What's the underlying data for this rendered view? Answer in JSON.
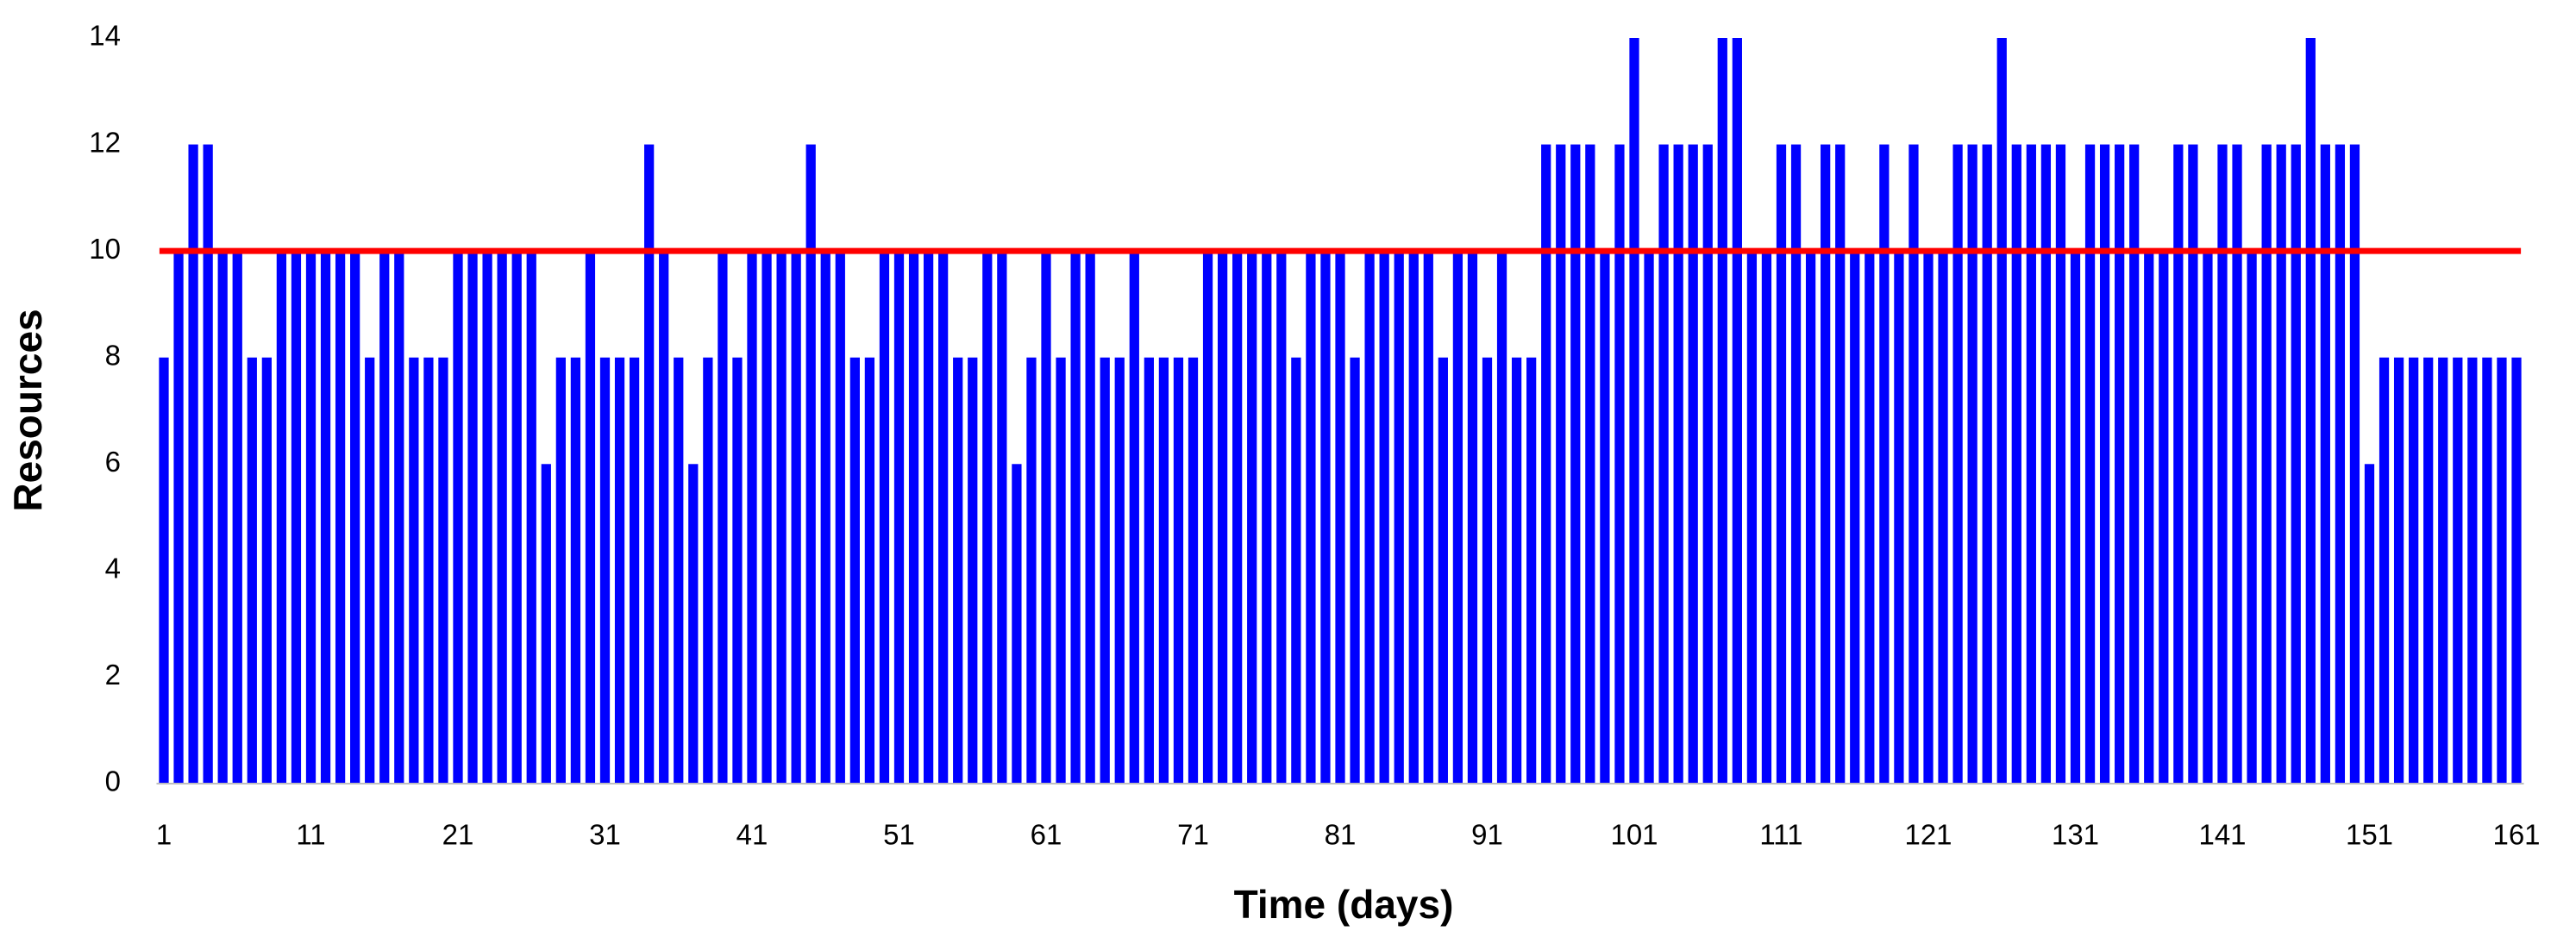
{
  "chart_data": {
    "type": "bar",
    "x_label": "Time (days)",
    "y_label": "Resources",
    "categories": [
      "1",
      null,
      null,
      null,
      null,
      null,
      null,
      null,
      null,
      null,
      "11",
      null,
      null,
      null,
      null,
      null,
      null,
      null,
      null,
      null,
      "21",
      null,
      null,
      null,
      null,
      null,
      null,
      null,
      null,
      null,
      "31",
      null,
      null,
      null,
      null,
      null,
      null,
      null,
      null,
      null,
      "41",
      null,
      null,
      null,
      null,
      null,
      null,
      null,
      null,
      null,
      "51",
      null,
      null,
      null,
      null,
      null,
      null,
      null,
      null,
      null,
      "61",
      null,
      null,
      null,
      null,
      null,
      null,
      null,
      null,
      null,
      "71",
      null,
      null,
      null,
      null,
      null,
      null,
      null,
      null,
      null,
      "81",
      null,
      null,
      null,
      null,
      null,
      null,
      null,
      null,
      null,
      "91",
      null,
      null,
      null,
      null,
      null,
      null,
      null,
      null,
      null,
      "101",
      null,
      null,
      null,
      null,
      null,
      null,
      null,
      null,
      null,
      "111",
      null,
      null,
      null,
      null,
      null,
      null,
      null,
      null,
      null,
      "121",
      null,
      null,
      null,
      null,
      null,
      null,
      null,
      null,
      null,
      "131",
      null,
      null,
      null,
      null,
      null,
      null,
      null,
      null,
      null,
      "141",
      null,
      null,
      null,
      null,
      null,
      null,
      null,
      null,
      null,
      "151",
      null,
      null,
      null,
      null,
      null,
      null,
      null,
      null,
      null,
      "161"
    ],
    "values": [
      8,
      10,
      12,
      12,
      10,
      10,
      8,
      8,
      10,
      10,
      10,
      10,
      10,
      10,
      8,
      10,
      10,
      8,
      8,
      8,
      10,
      10,
      10,
      10,
      10,
      10,
      6,
      8,
      8,
      10,
      8,
      8,
      8,
      12,
      10,
      8,
      6,
      8,
      10,
      8,
      10,
      10,
      10,
      10,
      12,
      10,
      10,
      8,
      8,
      10,
      10,
      10,
      10,
      10,
      8,
      8,
      10,
      10,
      6,
      8,
      10,
      8,
      10,
      10,
      8,
      8,
      10,
      8,
      8,
      8,
      8,
      10,
      10,
      10,
      10,
      10,
      10,
      8,
      10,
      10,
      10,
      8,
      10,
      10,
      10,
      10,
      10,
      8,
      10,
      10,
      8,
      10,
      8,
      8,
      12,
      12,
      12,
      12,
      10,
      12,
      14,
      10,
      12,
      12,
      12,
      12,
      14,
      14,
      10,
      10,
      12,
      12,
      10,
      12,
      12,
      10,
      10,
      12,
      10,
      12,
      10,
      10,
      12,
      12,
      12,
      14,
      12,
      12,
      12,
      12,
      10,
      12,
      12,
      12,
      12,
      10,
      10,
      12,
      12,
      10,
      12,
      12,
      10,
      12,
      12,
      12,
      14,
      12,
      12,
      12,
      6,
      8,
      8,
      8,
      8,
      8,
      8,
      8,
      8,
      8,
      8
    ],
    "color": "#0000ff",
    "reference_line": {
      "value": 10,
      "color": "#ff0000"
    },
    "ylim": [
      0,
      14
    ],
    "yticks": [
      0,
      2,
      4,
      6,
      8,
      10,
      12,
      14
    ]
  }
}
